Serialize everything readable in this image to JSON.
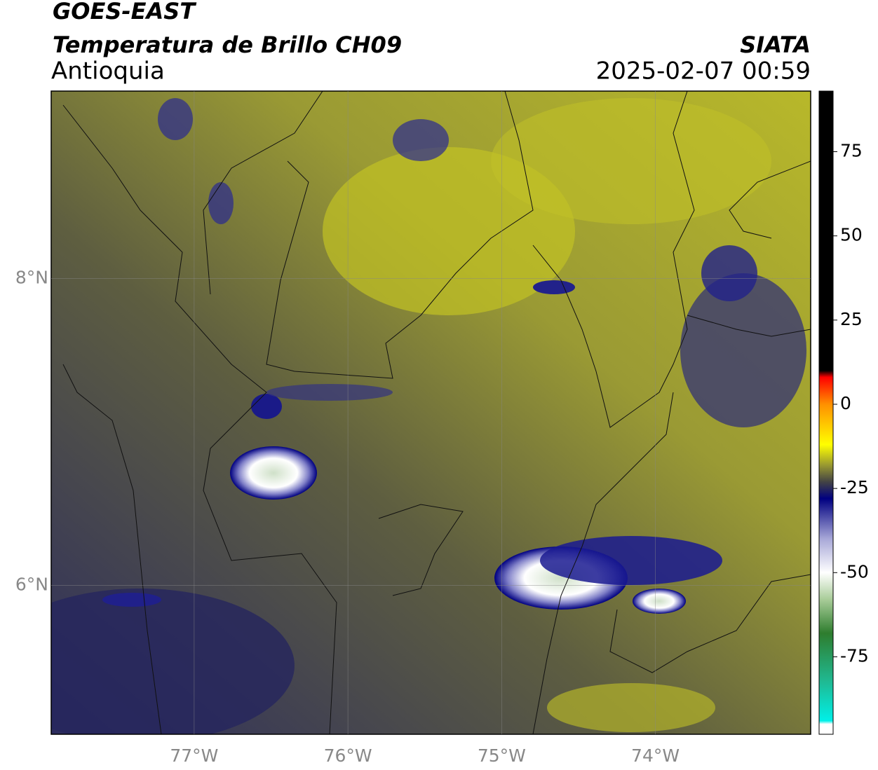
{
  "header": {
    "title": "GOES-EAST",
    "subtitle": "Temperatura de Brillo CH09",
    "region": "Antioquia",
    "source": "SIATA",
    "datetime": "2025-02-07 00:59"
  },
  "map": {
    "xlim": [
      -77.93,
      -72.99
    ],
    "ylim": [
      5.03,
      9.22
    ],
    "xticks": [
      {
        "value": -77,
        "label": "77°W"
      },
      {
        "value": -76,
        "label": "76°W"
      },
      {
        "value": -75,
        "label": "75°W"
      },
      {
        "value": -74,
        "label": "74°W"
      }
    ],
    "yticks": [
      {
        "value": 8,
        "label": "8°N"
      },
      {
        "value": 6,
        "label": "6°N"
      }
    ],
    "grid": true
  },
  "colorbar": {
    "lim": [
      -98,
      93
    ],
    "ticks": [
      75,
      50,
      25,
      0,
      -25,
      -50,
      -75
    ],
    "stops": [
      {
        "value": -98,
        "color": "#ffffff"
      },
      {
        "value": -95,
        "color": "#ffffff"
      },
      {
        "value": -94,
        "color": "#00f0e8"
      },
      {
        "value": -82,
        "color": "#20b890"
      },
      {
        "value": -68,
        "color": "#2e7d2e"
      },
      {
        "value": -58,
        "color": "#a8cc98"
      },
      {
        "value": -50,
        "color": "#ffffff"
      },
      {
        "value": -40,
        "color": "#a8a8d8"
      },
      {
        "value": -28,
        "color": "#000080"
      },
      {
        "value": -23,
        "color": "#444444"
      },
      {
        "value": -18,
        "color": "#9a9a30"
      },
      {
        "value": -12,
        "color": "#ffff00"
      },
      {
        "value": 0,
        "color": "#ff9000"
      },
      {
        "value": 8,
        "color": "#ff0000"
      },
      {
        "value": 10,
        "color": "#000000"
      },
      {
        "value": 93,
        "color": "#000000"
      }
    ]
  }
}
